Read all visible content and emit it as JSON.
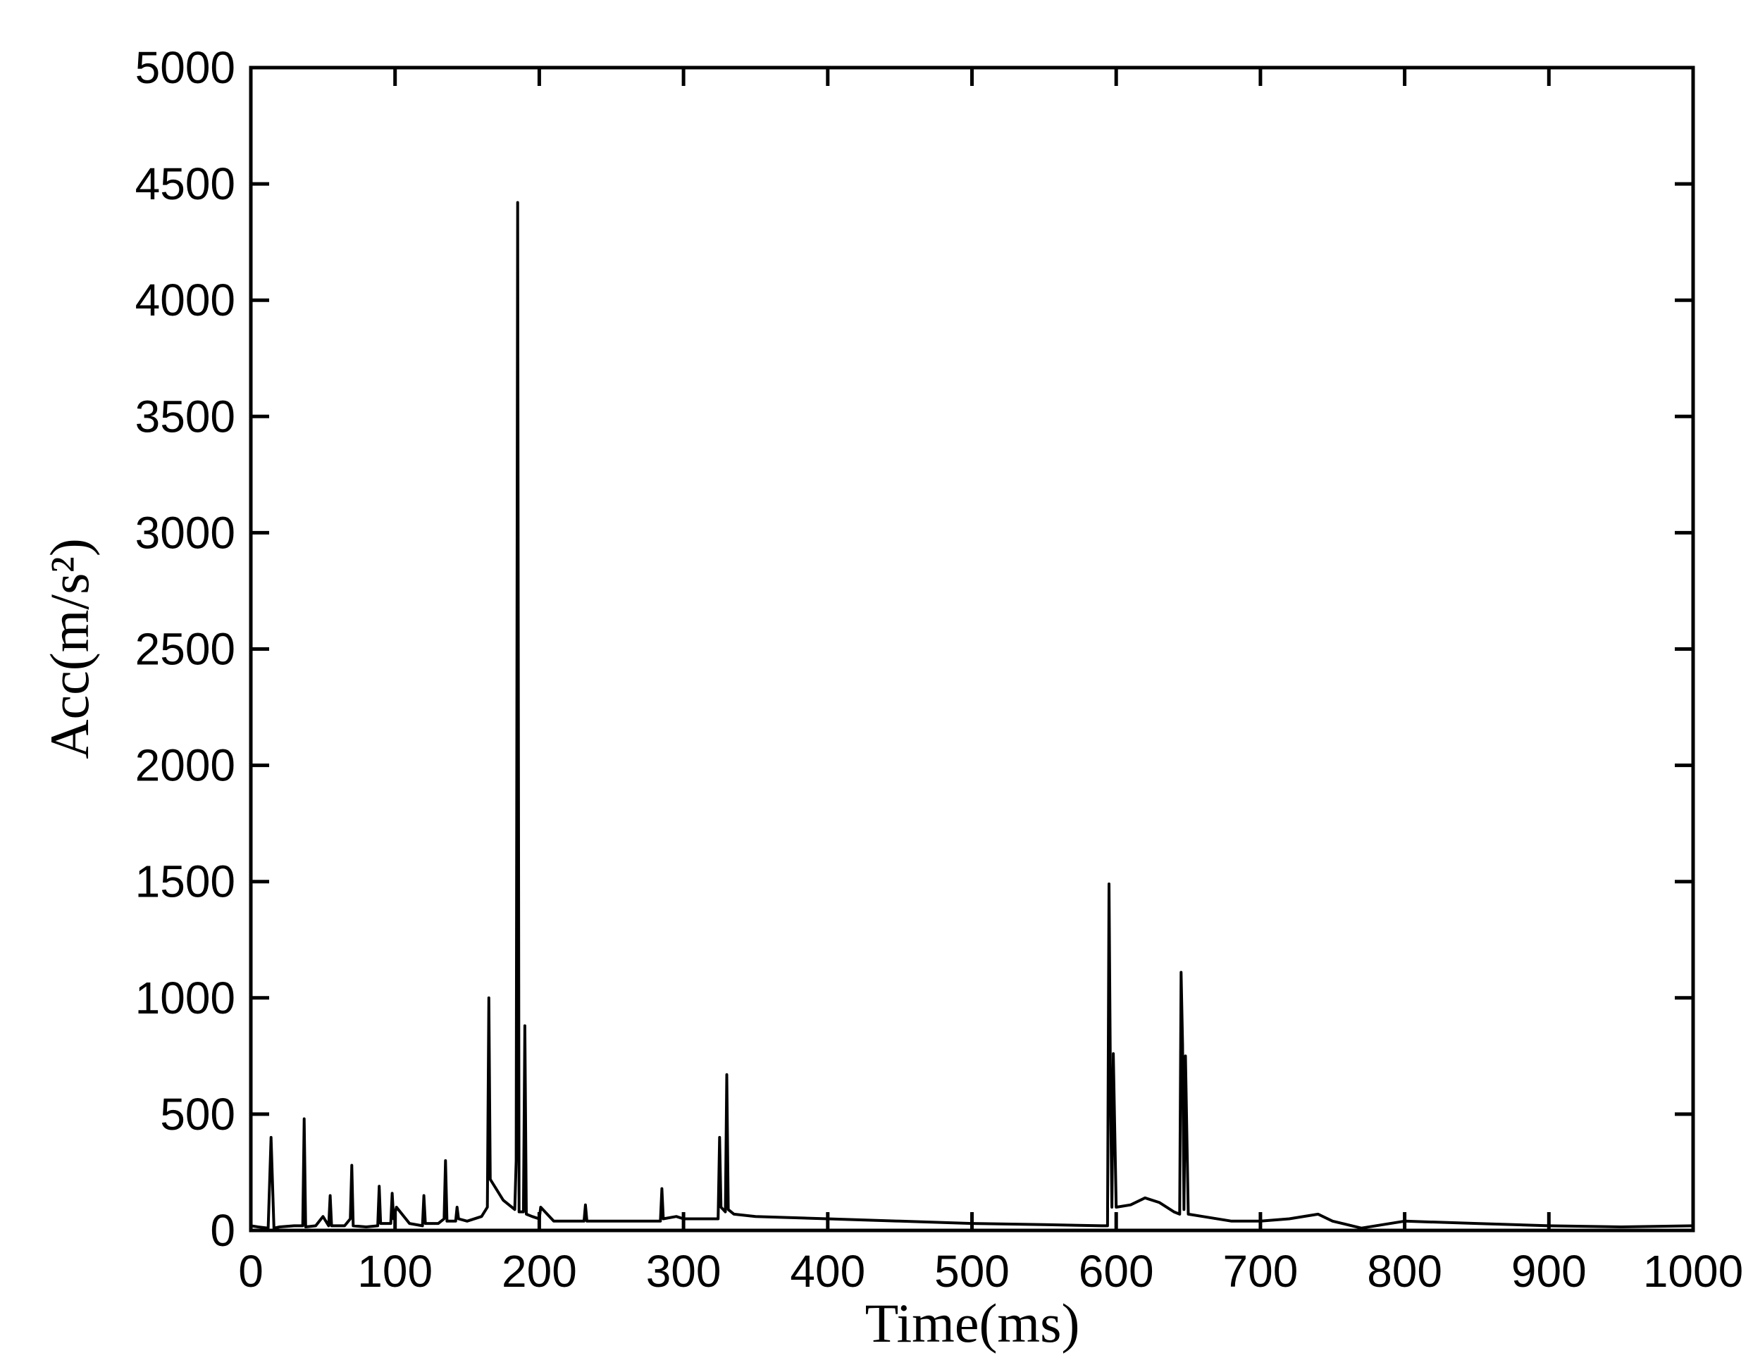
{
  "chart_data": {
    "type": "line",
    "xlabel": "Time(ms)",
    "ylabel": "Acc(m/s²)",
    "x": [
      0,
      5,
      12,
      13,
      14,
      16,
      20,
      30,
      36,
      37,
      38,
      45,
      50,
      54,
      55,
      56,
      65,
      69,
      70,
      71,
      80,
      88,
      89,
      90,
      97,
      98,
      99,
      101,
      110,
      119,
      120,
      121,
      130,
      134,
      135,
      136,
      142,
      143,
      144,
      150,
      160,
      164,
      165,
      166,
      168,
      175,
      183,
      184,
      185,
      186,
      189,
      190,
      191,
      195,
      200,
      201,
      210,
      231,
      232,
      233,
      250,
      270,
      284,
      285,
      286,
      295,
      300,
      320,
      324,
      325,
      326,
      329,
      330,
      331,
      335,
      350,
      400,
      450,
      500,
      550,
      590,
      594,
      595,
      596,
      597,
      598,
      600,
      610,
      620,
      630,
      640,
      644,
      645,
      646,
      647,
      648,
      650,
      660,
      680,
      700,
      720,
      740,
      750,
      770,
      800,
      850,
      900,
      950,
      1000
    ],
    "values": [
      20,
      15,
      10,
      200,
      400,
      10,
      15,
      20,
      20,
      480,
      15,
      20,
      60,
      20,
      150,
      20,
      20,
      50,
      280,
      20,
      15,
      20,
      190,
      30,
      30,
      160,
      50,
      100,
      30,
      20,
      150,
      30,
      30,
      50,
      300,
      40,
      40,
      100,
      50,
      40,
      60,
      100,
      1000,
      220,
      200,
      130,
      90,
      300,
      4420,
      80,
      80,
      880,
      70,
      60,
      50,
      100,
      40,
      40,
      110,
      40,
      40,
      40,
      40,
      180,
      50,
      60,
      50,
      50,
      50,
      400,
      100,
      80,
      670,
      90,
      70,
      60,
      50,
      40,
      30,
      25,
      20,
      20,
      1490,
      650,
      100,
      760,
      100,
      110,
      140,
      120,
      80,
      70,
      1110,
      800,
      90,
      750,
      70,
      60,
      40,
      40,
      50,
      70,
      40,
      10,
      40,
      30,
      20,
      15,
      20
    ],
    "color": "#000000",
    "xlim": [
      0,
      1000
    ],
    "xticks": [
      0,
      100,
      200,
      300,
      400,
      500,
      600,
      700,
      800,
      900,
      1000
    ],
    "ylim": [
      0,
      5000
    ],
    "yticks": [
      0,
      500,
      1000,
      1500,
      2000,
      2500,
      3000,
      3500,
      4000,
      4500,
      5000
    ]
  }
}
